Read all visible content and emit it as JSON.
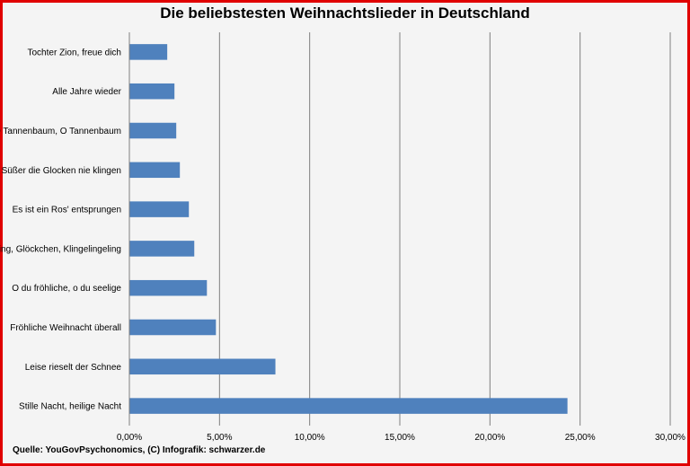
{
  "chart_data": {
    "type": "bar",
    "orientation": "horizontal",
    "title": "Die beliebstesten Weihnachtslieder in Deutschland",
    "categories": [
      "Tochter Zion, freue dich",
      "Alle Jahre wieder",
      "O Tannenbaum, O Tannenbaum",
      "Süßer die Glocken nie klingen",
      "Es ist ein Ros' entsprungen",
      "Kling, Glöckchen, Klingelingeling",
      "O du fröhliche, o du seelige",
      "Fröhliche Weihnacht überall",
      "Leise rieselt der Schnee",
      "Stille Nacht, heilige Nacht"
    ],
    "values": [
      2.1,
      2.5,
      2.6,
      2.8,
      3.3,
      3.6,
      4.3,
      4.8,
      8.1,
      24.3
    ],
    "value_unit": "%",
    "xlim": [
      0,
      30
    ],
    "xticks": [
      "0,00%",
      "5,00%",
      "10,00%",
      "15,00%",
      "20,00%",
      "25,00%",
      "30,00%"
    ],
    "grid": true,
    "bar_color": "#4f81bd",
    "border_color": "#e00000"
  },
  "footer": {
    "source": "Quelle: YouGovPsychonomics,  (C) Infografik: schwarzer.de"
  }
}
